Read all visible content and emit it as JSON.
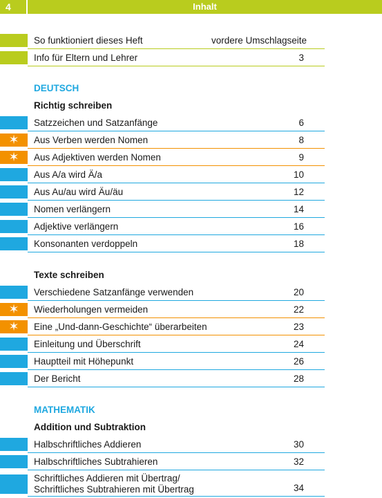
{
  "header": {
    "page_number": "4",
    "title": "Inhalt"
  },
  "intro": [
    {
      "label": "So funktioniert dieses Heft",
      "page": "vordere Umschlagseite"
    },
    {
      "label": "Info für Eltern und Lehrer",
      "page": "3"
    }
  ],
  "deutsch": {
    "heading": "DEUTSCH",
    "richtig": {
      "heading": "Richtig schreiben",
      "items": [
        {
          "label": "Satzzeichen und Satzanfänge",
          "page": "6"
        },
        {
          "label": "Aus Verben werden Nomen",
          "page": "8"
        },
        {
          "label": "Aus Adjektiven werden Nomen",
          "page": "9"
        },
        {
          "label": "Aus A/a wird Ä/a",
          "page": "10"
        },
        {
          "label": "Aus Au/au wird Äu/äu",
          "page": "12"
        },
        {
          "label": "Nomen verlängern",
          "page": "14"
        },
        {
          "label": "Adjektive verlängern",
          "page": "16"
        },
        {
          "label": "Konsonanten verdoppeln",
          "page": "18"
        }
      ]
    },
    "texte": {
      "heading": "Texte schreiben",
      "items": [
        {
          "label": "Verschiedene Satzanfänge verwenden",
          "page": "20"
        },
        {
          "label": "Wiederholungen vermeiden",
          "page": "22"
        },
        {
          "label": "Eine „Und-dann-Geschichte“ überarbeiten",
          "page": "23"
        },
        {
          "label": "Einleitung und Überschrift",
          "page": "24"
        },
        {
          "label": "Hauptteil mit Höhepunkt",
          "page": "26"
        },
        {
          "label": "Der Bericht",
          "page": "28"
        }
      ]
    }
  },
  "mathematik": {
    "heading": "MATHEMATIK",
    "addition": {
      "heading": "Addition und Subtraktion",
      "items": [
        {
          "label": "Halbschriftliches Addieren",
          "page": "30"
        },
        {
          "label": "Halbschriftliches Subtrahieren",
          "page": "32"
        },
        {
          "label_line1": "Schriftliches Addieren mit Übertrag/",
          "label_line2": "Schriftliches Subtrahieren mit Übertrag",
          "page": "34"
        }
      ]
    }
  },
  "markers": {
    "star": "✶"
  },
  "colors": {
    "green": "#b9cc1e",
    "blue": "#1fa8e0",
    "orange": "#f39100"
  }
}
